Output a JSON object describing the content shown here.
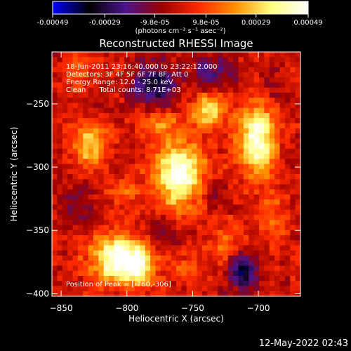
{
  "chart_data": {
    "type": "heatmap",
    "title": "Reconstructed RHESSI Image",
    "xlabel": "Heliocentric X (arcsec)",
    "ylabel": "Heliocentric Y (arcsec)",
    "xlim": [
      -857,
      -668
    ],
    "ylim": [
      -402,
      -209
    ],
    "x_ticks": [
      -850,
      -800,
      -750,
      -700
    ],
    "y_ticks": [
      -250,
      -300,
      -350,
      -400
    ],
    "colorbar": {
      "ticks": [
        -0.00049,
        -0.00029,
        -9.8e-05,
        9.8e-05,
        0.00029,
        0.00049
      ],
      "tick_labels": [
        "-0.00049",
        "-0.00029",
        "-9.8e-05",
        "9.8e-05",
        "0.00029",
        "0.00049"
      ],
      "units_label": "(photons cm⁻² s⁻¹ asec⁻²)",
      "range": [
        -0.00049,
        0.00049
      ],
      "colormap": [
        "#0000ff",
        "#000000",
        "#4a148c",
        "#9b0000",
        "#ff2a00",
        "#ff9000",
        "#ffff80",
        "#ffffff"
      ]
    },
    "annotations": [
      "18-Jun-2011 23:16:40.000 to 23:22:12.000",
      "Detectors: 3F 4F 5F 6F 7F 8F, Att 0",
      "Energy Range: 12.0 - 25.0 keV",
      "Clean      Total counts: 8.71E+03"
    ],
    "peak_label": "Position of Peak = [-760,-306]",
    "peak_position": [
      -760,
      -306
    ],
    "sources": [
      {
        "x": -760,
        "y": -306,
        "amp": 0.00049,
        "sx": 14,
        "sy": 18
      },
      {
        "x": -701,
        "y": -278,
        "amp": 0.00047,
        "sx": 10,
        "sy": 20
      },
      {
        "x": -808,
        "y": -372,
        "amp": 0.00045,
        "sx": 14,
        "sy": 14
      },
      {
        "x": -792,
        "y": -378,
        "amp": 0.00032,
        "sx": 10,
        "sy": 10
      },
      {
        "x": -828,
        "y": -282,
        "amp": 0.0003,
        "sx": 9,
        "sy": 11
      },
      {
        "x": -775,
        "y": -265,
        "amp": 0.00018,
        "sx": 10,
        "sy": 8
      },
      {
        "x": -738,
        "y": -255,
        "amp": 0.00028,
        "sx": 10,
        "sy": 10
      },
      {
        "x": -725,
        "y": -360,
        "amp": 0.00018,
        "sx": 9,
        "sy": 10
      },
      {
        "x": -690,
        "y": -340,
        "amp": 0.00016,
        "sx": 7,
        "sy": 12
      },
      {
        "x": -840,
        "y": -225,
        "amp": 0.00014,
        "sx": 7,
        "sy": 8
      },
      {
        "x": -800,
        "y": -318,
        "amp": 0.00012,
        "sx": 8,
        "sy": 8
      },
      {
        "x": -755,
        "y": -380,
        "amp": 0.00012,
        "sx": 9,
        "sy": 8
      },
      {
        "x": -780,
        "y": -235,
        "amp": -0.00032,
        "sx": 12,
        "sy": 12
      },
      {
        "x": -735,
        "y": -225,
        "amp": -0.0002,
        "sx": 12,
        "sy": 10
      },
      {
        "x": -712,
        "y": -382,
        "amp": -0.00035,
        "sx": 8,
        "sy": 10
      },
      {
        "x": -838,
        "y": -330,
        "amp": -0.00014,
        "sx": 9,
        "sy": 10
      },
      {
        "x": -735,
        "y": -318,
        "amp": -0.00014,
        "sx": 8,
        "sy": 9
      },
      {
        "x": -690,
        "y": -235,
        "amp": -0.00012,
        "sx": 7,
        "sy": 8
      },
      {
        "x": -770,
        "y": -350,
        "amp": -0.0001,
        "sx": 10,
        "sy": 8
      }
    ]
  },
  "footer": {
    "timestamp": "12-May-2022 02:43"
  }
}
